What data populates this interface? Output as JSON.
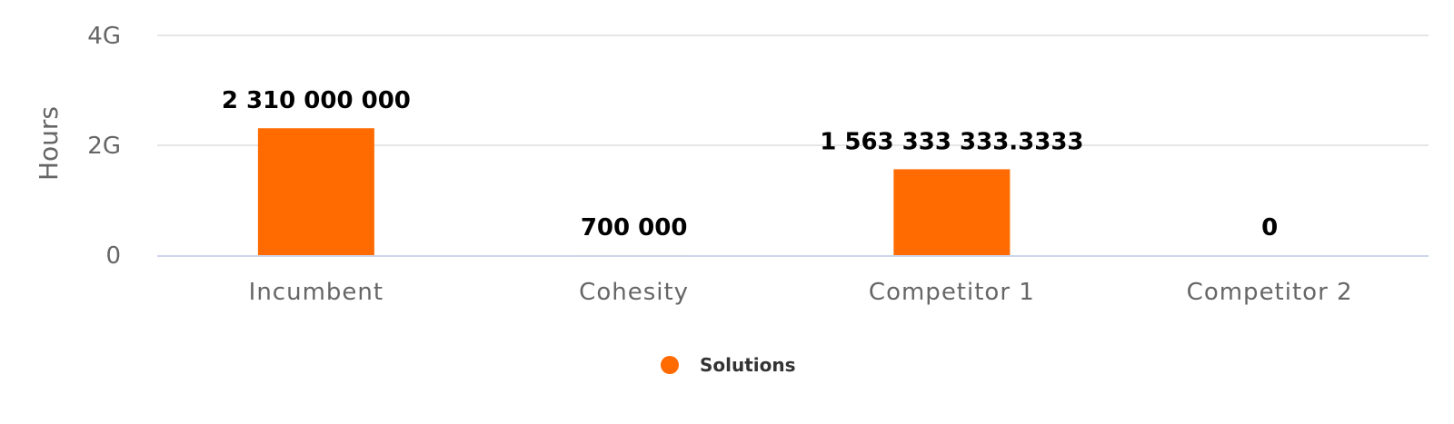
{
  "chart_data": {
    "type": "bar",
    "categories": [
      "Incumbent",
      "Cohesity",
      "Competitor 1",
      "Competitor 2"
    ],
    "series": [
      {
        "name": "Solutions",
        "values": [
          2310000000,
          700000,
          1563333333.3333,
          0
        ],
        "labels": [
          "2 310 000 000",
          "700 000",
          "1 563 333 333.3333",
          "0"
        ]
      }
    ],
    "title": "",
    "xlabel": "",
    "ylabel": "Hours",
    "ylim": [
      0,
      4000000000
    ],
    "yticks": [
      0,
      2000000000,
      4000000000
    ],
    "ytick_labels": [
      "0",
      "2G",
      "4G"
    ],
    "grid": true,
    "legend": "bottom-center",
    "colors": {
      "bar": "#ff6b00",
      "grid": "#e6e6e6",
      "baseline": "#ccd6eb"
    }
  }
}
